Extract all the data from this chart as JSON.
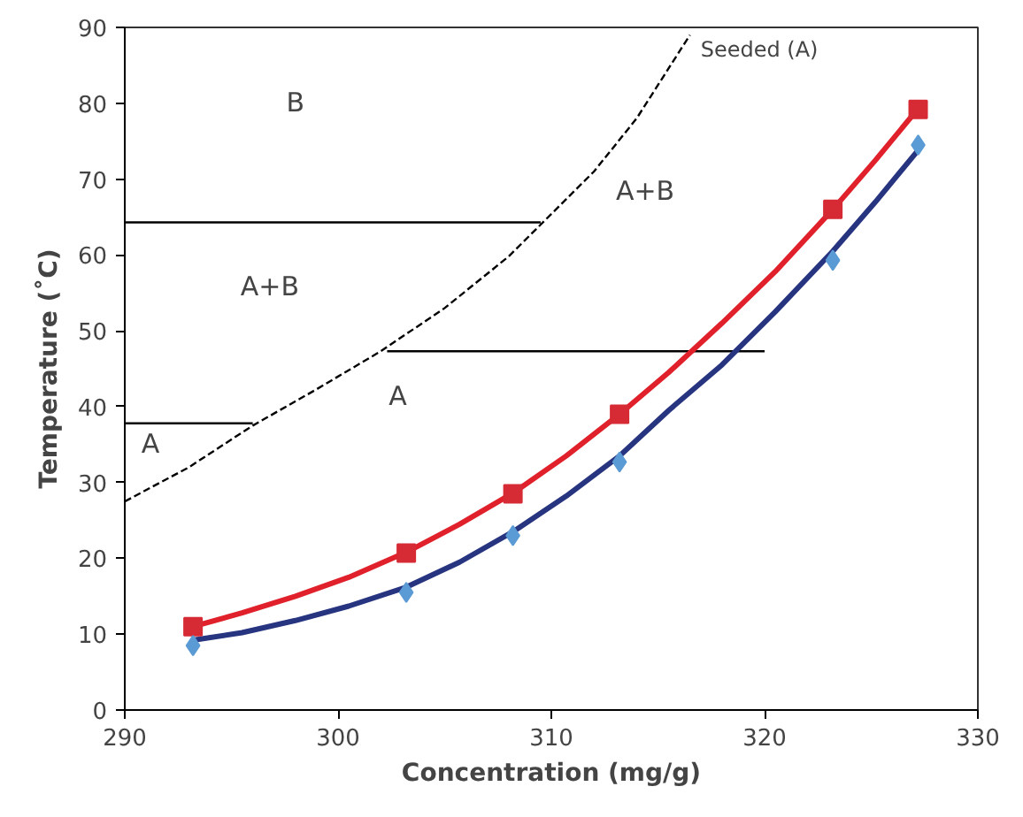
{
  "chart_data": {
    "type": "scatter",
    "xlabel": "Concentration (mg/g)",
    "ylabel": "Temperature (˚C)",
    "xlim": [
      290,
      330
    ],
    "xticks": [
      290,
      300,
      310,
      320,
      330
    ],
    "ylim": [
      0,
      90
    ],
    "yticks": [
      0,
      10,
      20,
      30,
      40,
      50,
      60,
      70,
      80,
      90
    ],
    "grid": false,
    "series": [
      {
        "type": "line",
        "color": "#000000",
        "line_style": "dashed",
        "marker": "none",
        "x": [
          290,
          293,
          296,
          299,
          302,
          305,
          308,
          309.5,
          312,
          314,
          316.5
        ],
        "values": [
          27.5,
          32,
          37.5,
          42.3,
          47.3,
          53,
          59.8,
          64,
          71,
          78,
          89
        ]
      },
      {
        "type": "line",
        "color": "#000000",
        "line_style": "solid",
        "marker": "none",
        "x": [
          290,
          296
        ],
        "values": [
          37.8,
          37.8
        ]
      },
      {
        "type": "line",
        "color": "#000000",
        "line_style": "solid",
        "marker": "none",
        "x": [
          290,
          309.5
        ],
        "values": [
          64.3,
          64.3
        ]
      },
      {
        "type": "line",
        "color": "#000000",
        "line_style": "solid",
        "marker": "none",
        "x": [
          302.3,
          320
        ],
        "values": [
          47.3,
          47.3
        ]
      },
      {
        "type": "line",
        "color": "#e0202a",
        "line_style": "solid",
        "marker": "none",
        "x": [
          293.2,
          295.5,
          298,
          300.5,
          303.2,
          305.7,
          308.2,
          310.7,
          313.2,
          315.5,
          318,
          320.5,
          323.2,
          325.2,
          327.2
        ],
        "values": [
          11,
          12.8,
          15,
          17.5,
          20.8,
          24.5,
          28.6,
          33.5,
          39,
          44.5,
          51,
          57.8,
          66,
          72.5,
          79.3
        ]
      },
      {
        "type": "line",
        "color": "#27347f",
        "line_style": "solid",
        "marker": "none",
        "x": [
          293.2,
          295.5,
          298,
          300.5,
          303.2,
          305.7,
          308.2,
          310.7,
          313.2,
          315.5,
          318,
          320.5,
          323.2,
          325.2,
          327.2
        ],
        "values": [
          9.2,
          10.2,
          11.8,
          13.7,
          16.2,
          19.5,
          23.5,
          28.2,
          33.5,
          39.5,
          45.5,
          52.5,
          60.5,
          67,
          73.8
        ]
      },
      {
        "color": "#d62a35",
        "marker": "square",
        "x": [
          293.2,
          303.2,
          308.2,
          313.2,
          323.2,
          327.2
        ],
        "values": [
          11,
          20.7,
          28.5,
          39,
          66,
          79.2
        ]
      },
      {
        "color": "#5b9bd5",
        "marker": "diamond",
        "x": [
          293.2,
          303.2,
          308.2,
          313.2,
          323.2,
          327.2
        ],
        "values": [
          8.5,
          15.5,
          23,
          32.7,
          59.3,
          74.5
        ]
      }
    ],
    "annotations": [
      "B",
      "A+B",
      "A",
      "A",
      "A+B",
      "Seeded (A)"
    ]
  }
}
